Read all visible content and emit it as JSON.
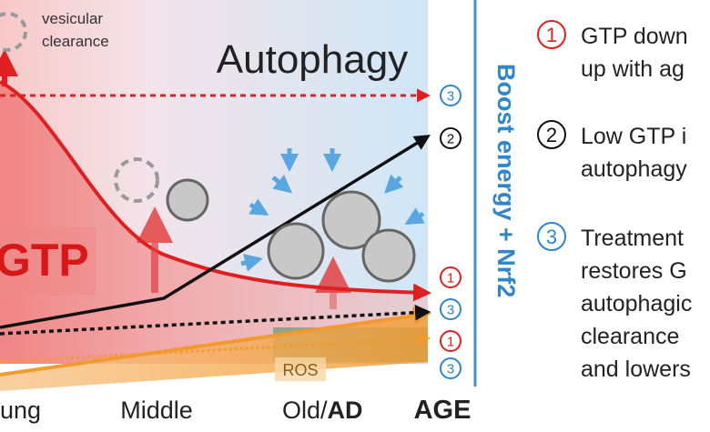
{
  "diagram": {
    "title": "Autophagy",
    "annotation": [
      "vesicular",
      "clearance"
    ],
    "gtp_label": "GTP",
    "ros_label": "ROS",
    "side_label": "Boost energy + Nrf2",
    "x_labels": [
      "ung",
      "Middle",
      "Old/",
      "AD",
      "AGE"
    ],
    "markers": [
      "3",
      "2",
      "1",
      "3",
      "1",
      "3"
    ],
    "legend": [
      {
        "number": "1",
        "lines": [
          "GTP down",
          "up with ag"
        ]
      },
      {
        "number": "2",
        "lines": [
          "Low GTP i",
          "autophagy"
        ]
      },
      {
        "number": "3",
        "lines": [
          "Treatment",
          "restores G",
          "autophagic",
          "clearance",
          "and lowers"
        ]
      }
    ]
  }
}
